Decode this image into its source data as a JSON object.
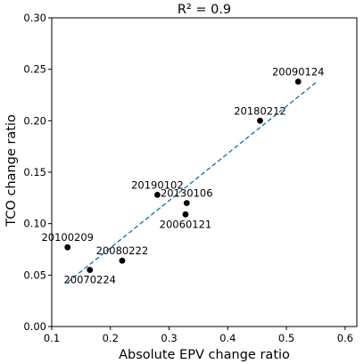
{
  "chart_data": {
    "type": "scatter",
    "title": "R² = 0.9",
    "xlabel": "Absolute EPV change ratio",
    "ylabel": "TCO change ratio",
    "xlim": [
      0.1,
      0.62
    ],
    "ylim": [
      0.0,
      0.3
    ],
    "xticks": [
      0.1,
      0.2,
      0.3,
      0.4,
      0.5,
      0.6
    ],
    "xtick_labels": [
      "0.1",
      "0.2",
      "0.3",
      "0.4",
      "0.5",
      "0.6"
    ],
    "yticks": [
      0.0,
      0.05,
      0.1,
      0.15,
      0.2,
      0.25,
      0.3
    ],
    "ytick_labels": [
      "0.00",
      "0.05",
      "0.10",
      "0.15",
      "0.20",
      "0.25",
      "0.30"
    ],
    "grid": false,
    "marker_color": "#000000",
    "fit_color": "#1f77b4",
    "points": [
      {
        "label": "20090124",
        "x": 0.52,
        "y": 0.238,
        "label_pos": "above"
      },
      {
        "label": "20180212",
        "x": 0.455,
        "y": 0.2,
        "label_pos": "above"
      },
      {
        "label": "20190102",
        "x": 0.28,
        "y": 0.128,
        "label_pos": "above"
      },
      {
        "label": "20130106",
        "x": 0.33,
        "y": 0.12,
        "label_pos": "above"
      },
      {
        "label": "20060121",
        "x": 0.328,
        "y": 0.109,
        "label_pos": "below"
      },
      {
        "label": "20100209",
        "x": 0.127,
        "y": 0.077,
        "label_pos": "above"
      },
      {
        "label": "20080222",
        "x": 0.22,
        "y": 0.064,
        "label_pos": "above"
      },
      {
        "label": "20070224",
        "x": 0.165,
        "y": 0.055,
        "label_pos": "below"
      }
    ],
    "fit_line": {
      "style": "dashed",
      "x": [
        0.127,
        0.55
      ],
      "y": [
        0.043,
        0.237
      ]
    }
  }
}
